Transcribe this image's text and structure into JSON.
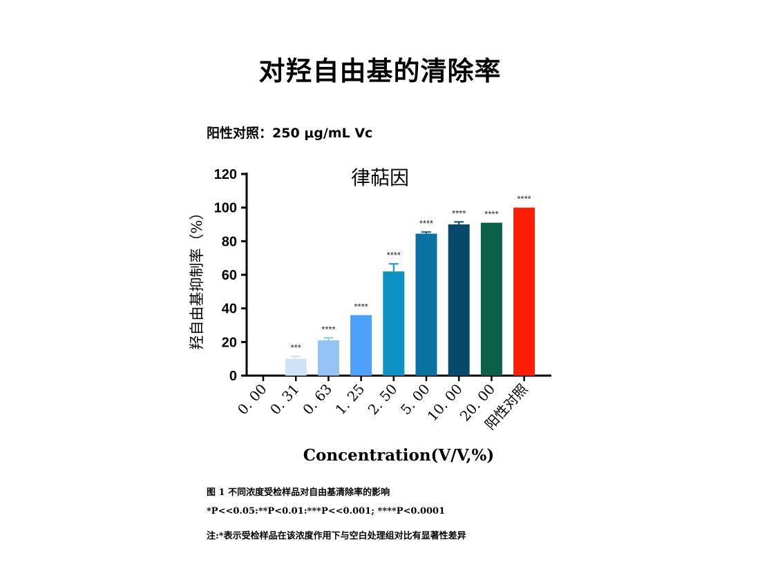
{
  "page": {
    "title": "对羟自由基的清除率",
    "subtitle": "阳性对照：250 μg/mL Vc",
    "captions": [
      "图 1 不同浓度受检样品对自由基清除率的影响",
      "*P<<0.05:**P<0.01:***P<<0.001; ****P<0.0001",
      "注:*表示受检样品在该浓度作用下与空白处理组对比有显著性差异"
    ]
  },
  "chart_data": {
    "type": "bar",
    "title": "律萜因",
    "xlabel": "Concentration(V/V,%)",
    "ylabel": "羟自由基抑制率（%）",
    "ylim": [
      0,
      120
    ],
    "yticks": [
      0,
      20,
      40,
      60,
      80,
      100,
      120
    ],
    "grid": false,
    "categories": [
      "0. 00",
      "0. 31",
      "0. 63",
      "1. 25",
      "2. 50",
      "5. 00",
      "10. 00",
      "20. 00",
      "阳性对照"
    ],
    "values": [
      0,
      10,
      21,
      36,
      62,
      84.5,
      90,
      91,
      100
    ],
    "error": [
      0,
      1.5,
      1.5,
      0,
      4.5,
      1,
      1.5,
      0,
      0
    ],
    "significance": [
      "",
      "***",
      "****",
      "****",
      "****",
      "****",
      "****",
      "****",
      "****"
    ],
    "colors": [
      "#cfe2f7",
      "#cfe2f7",
      "#93c2f5",
      "#4e9ff7",
      "#0e92c4",
      "#0a72a0",
      "#06496b",
      "#0b6049",
      "#fb1d05"
    ]
  }
}
